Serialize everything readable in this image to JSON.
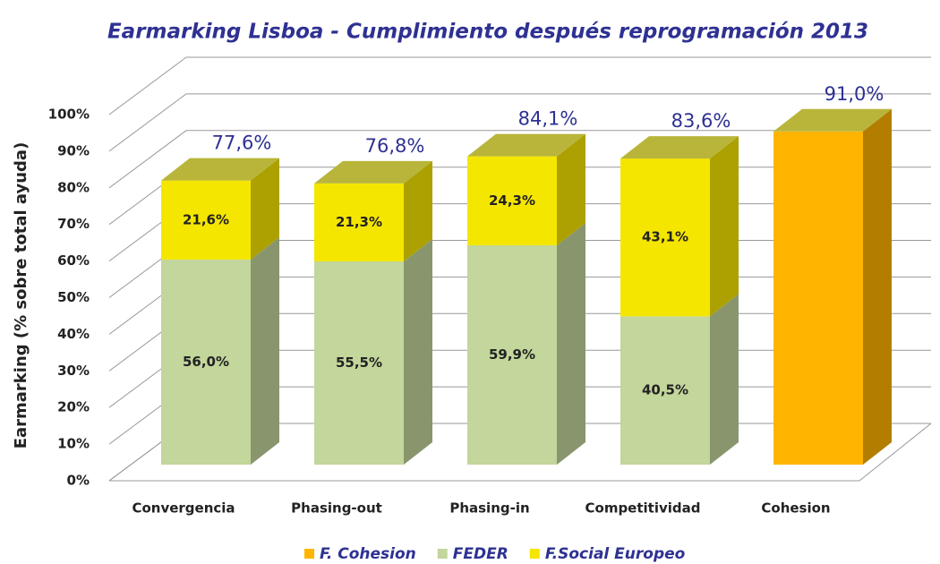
{
  "chart_data": {
    "type": "bar",
    "stacked": true,
    "title": "Earmarking Lisboa - Cumplimiento después reprogramación 2013",
    "y_label": "Earmarking (% sobre total ayuda)",
    "categories": [
      "Convergencia",
      "Phasing-out",
      "Phasing-in",
      "Competitividad",
      "Cohesion"
    ],
    "series": [
      {
        "name": "F. Cohesion",
        "color": "#ffb400",
        "values": [
          null,
          null,
          null,
          null,
          91.0
        ],
        "value_labels": [
          null,
          null,
          null,
          null,
          null
        ]
      },
      {
        "name": "FEDER",
        "color": "#c3d69b",
        "values": [
          56.0,
          55.5,
          59.9,
          40.5,
          null
        ],
        "value_labels": [
          "56,0%",
          "55,5%",
          "59,9%",
          "40,5%",
          null
        ]
      },
      {
        "name": "F.Social Europeo",
        "color": "#f5e600",
        "values": [
          21.6,
          21.3,
          24.3,
          43.1,
          null
        ],
        "value_labels": [
          "21,6%",
          "21,3%",
          "24,3%",
          "43,1%",
          null
        ]
      }
    ],
    "stack_order": [
      1,
      2,
      0
    ],
    "totals": [
      77.6,
      76.8,
      84.1,
      83.6,
      91.0
    ],
    "total_labels": [
      "77,6%",
      "76,8%",
      "84,1%",
      "83,6%",
      "91,0%"
    ],
    "ylim": [
      0,
      100
    ],
    "yticks": [
      {
        "value": 0,
        "label": "0%"
      },
      {
        "value": 10,
        "label": "10%"
      },
      {
        "value": 20,
        "label": "20%"
      },
      {
        "value": 30,
        "label": "30%"
      },
      {
        "value": 40,
        "label": "40%"
      },
      {
        "value": 50,
        "label": "50%"
      },
      {
        "value": 60,
        "label": "60%"
      },
      {
        "value": 70,
        "label": "70%"
      },
      {
        "value": 80,
        "label": "80%"
      },
      {
        "value": 90,
        "label": "90%"
      },
      {
        "value": 100,
        "label": "100%"
      }
    ],
    "grid": true,
    "legend": "bottom"
  }
}
